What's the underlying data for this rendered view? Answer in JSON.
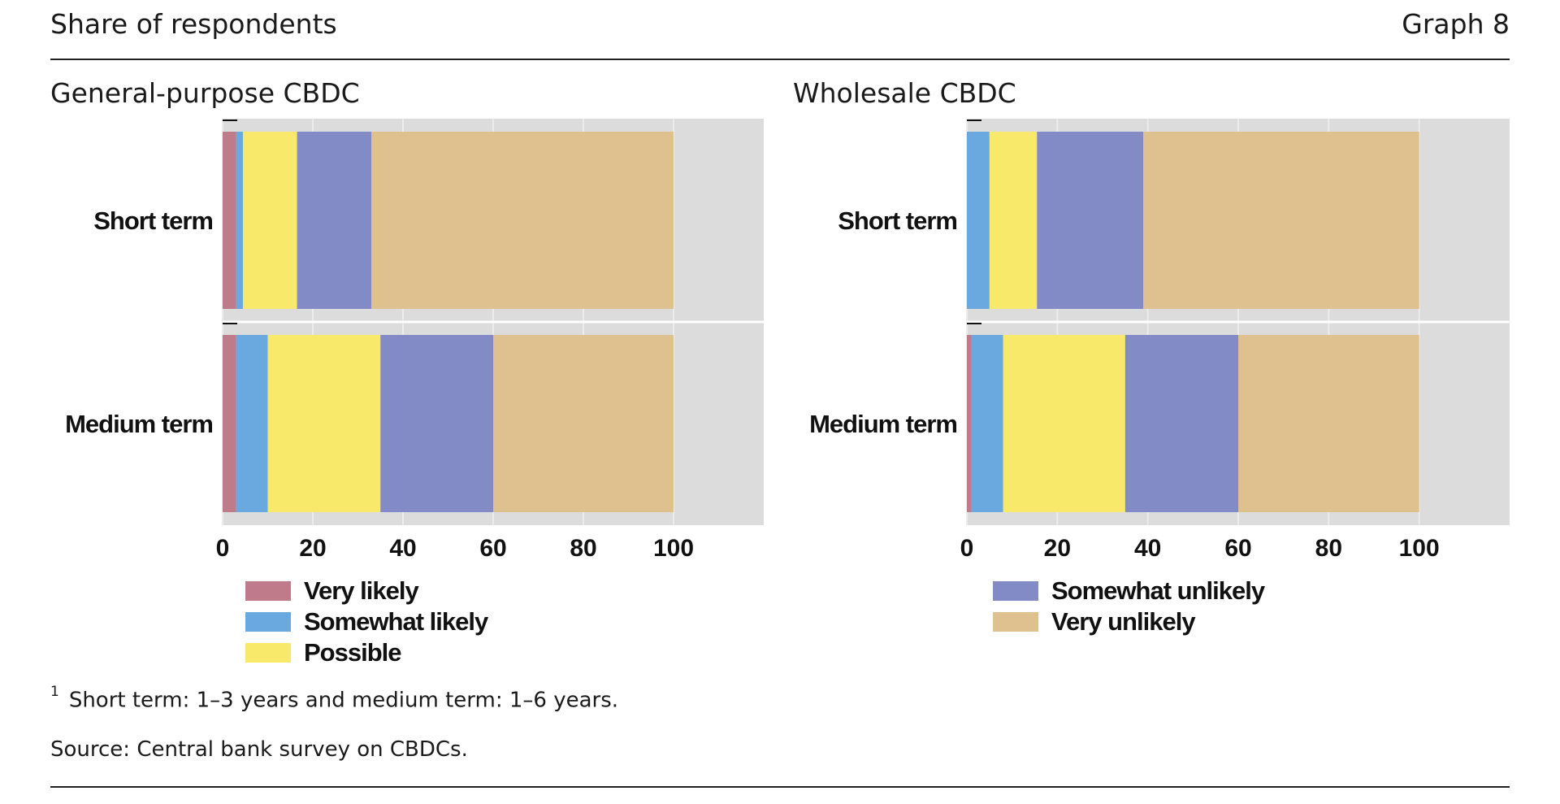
{
  "header": {
    "title": "Share of respondents",
    "graph_number": "Graph 8"
  },
  "panels": [
    {
      "title": "General-purpose CBDC"
    },
    {
      "title": "Wholesale CBDC"
    }
  ],
  "legend": {
    "left": [
      {
        "label": "Very likely",
        "color": "#c07b8b"
      },
      {
        "label": "Somewhat likely",
        "color": "#6aa9e0"
      },
      {
        "label": "Possible",
        "color": "#f9e96b"
      }
    ],
    "right": [
      {
        "label": "Somewhat unlikely",
        "color": "#838bc6"
      },
      {
        "label": "Very unlikely",
        "color": "#dfc08f"
      }
    ]
  },
  "footnote": {
    "marker": "1",
    "text": "Short term: 1–3 years and medium term: 1–6 years."
  },
  "source": "Source: Central bank survey on CBDCs.",
  "chart_data": [
    {
      "type": "bar",
      "orientation": "horizontal",
      "stacked": true,
      "title": "General-purpose CBDC",
      "categories": [
        "Short term",
        "Medium term"
      ],
      "series": [
        {
          "name": "Very likely",
          "values": [
            3,
            3
          ],
          "color": "#c07b8b"
        },
        {
          "name": "Somewhat likely",
          "values": [
            1.5,
            7
          ],
          "color": "#6aa9e0"
        },
        {
          "name": "Possible",
          "values": [
            12,
            25
          ],
          "color": "#f9e96b"
        },
        {
          "name": "Somewhat unlikely",
          "values": [
            16.5,
            25
          ],
          "color": "#838bc6"
        },
        {
          "name": "Very unlikely",
          "values": [
            67,
            40
          ],
          "color": "#dfc08f"
        }
      ],
      "xlim": [
        0,
        120
      ],
      "xticks": [
        0,
        20,
        40,
        60,
        80,
        100
      ],
      "xlabel": "",
      "ylabel": ""
    },
    {
      "type": "bar",
      "orientation": "horizontal",
      "stacked": true,
      "title": "Wholesale CBDC",
      "categories": [
        "Short term",
        "Medium term"
      ],
      "series": [
        {
          "name": "Very likely",
          "values": [
            0,
            1
          ],
          "color": "#c07b8b"
        },
        {
          "name": "Somewhat likely",
          "values": [
            5,
            7
          ],
          "color": "#6aa9e0"
        },
        {
          "name": "Possible",
          "values": [
            10.5,
            27
          ],
          "color": "#f9e96b"
        },
        {
          "name": "Somewhat unlikely",
          "values": [
            23.5,
            25
          ],
          "color": "#838bc6"
        },
        {
          "name": "Very unlikely",
          "values": [
            61,
            40
          ],
          "color": "#dfc08f"
        }
      ],
      "xlim": [
        0,
        120
      ],
      "xticks": [
        0,
        20,
        40,
        60,
        80,
        100
      ],
      "xlabel": "",
      "ylabel": ""
    }
  ],
  "style": {
    "plot_background": "#dcdcdc"
  }
}
